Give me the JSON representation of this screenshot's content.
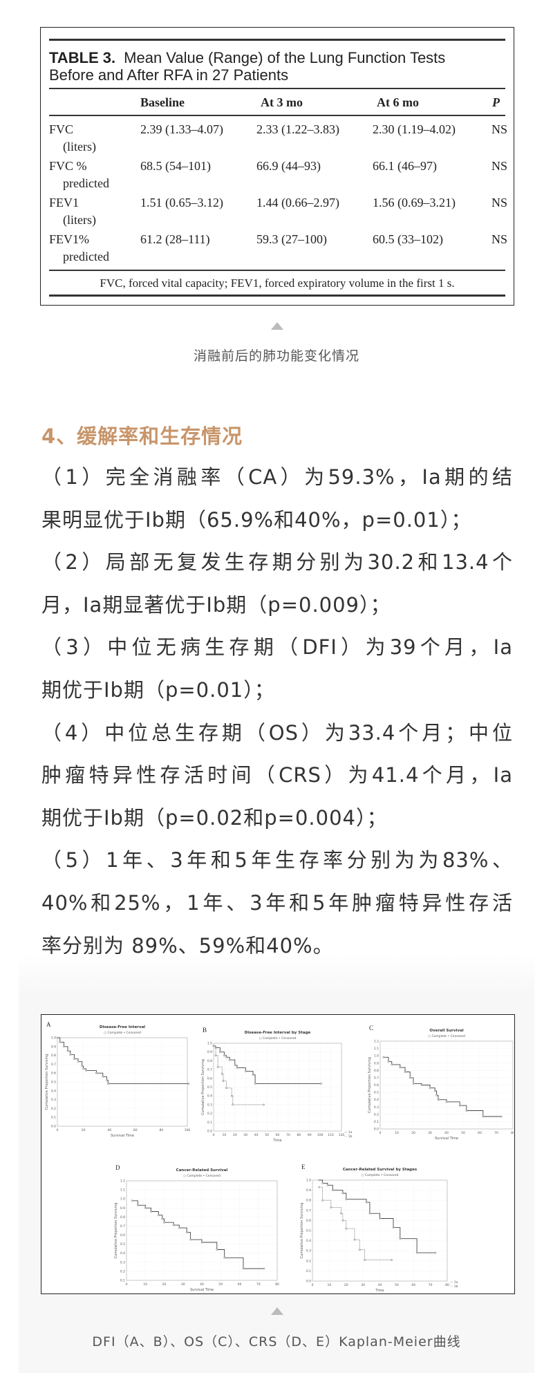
{
  "table": {
    "label": "TABLE 3.",
    "title_line1": "Mean Value (Range) of the Lung Function Tests",
    "title_line2": "Before and After RFA in 27 Patients",
    "headers": [
      "",
      "Baseline",
      "At 3 mo",
      "At 6 mo",
      "P"
    ],
    "rows": [
      {
        "name": "FVC",
        "sub": "(liters)",
        "cells": [
          "2.39 (1.33–4.07)",
          "2.33 (1.22–3.83)",
          "2.30 (1.19–4.02)",
          "NS"
        ]
      },
      {
        "name": "FVC %",
        "sub": "predicted",
        "cells": [
          "68.5 (54–101)",
          "66.9 (44–93)",
          "66.1 (46–97)",
          "NS"
        ]
      },
      {
        "name": "FEV1",
        "sub": "(liters)",
        "cells": [
          "1.51 (0.65–3.12)",
          "1.44 (0.66–2.97)",
          "1.56 (0.69–3.21)",
          "NS"
        ]
      },
      {
        "name": "FEV1%",
        "sub": "predicted",
        "cells": [
          "61.2 (28–111)",
          "59.3 (27–100)",
          "60.5 (33–102)",
          "NS"
        ]
      }
    ],
    "footnote": "FVC, forced vital capacity; FEV1, forced expiratory volume in the first 1 s."
  },
  "caption1": "消融前后的肺功能变化情况",
  "section": {
    "heading": "4、缓解率和生存情况",
    "lines": [
      "（1）完全消融率（CA）为59.3%，Ia期的结",
      "果明显优于Ib期（65.9%和40%，p=0.01）；",
      "（2）局部无复发生存期分别为30.2和13.4个",
      "月，Ia期显著优于Ib期（p=0.009）；",
      "（3）中位无病生存期（DFI）为39个月，Ia",
      "期优于Ib期（p=0.01）；",
      "（4）中位总生存期（OS）为33.4个月；中位",
      "肿瘤特异性存活时间（CRS）为41.4个月，Ia",
      "期优于Ib期（p=0.02和p=0.004）；",
      "（5）1年、3年和5年生存率分别为为83%、",
      "40%和25%，1年、3年和5年肿瘤特异性存活",
      "率分别为 89%、59%和40%。"
    ],
    "paragraph_end_lines": [
      1,
      3,
      5,
      8,
      11
    ]
  },
  "caption2": "DFI（A、B）、OS（C）、CRS（D、E）Kaplan-Meier曲线",
  "chart_data": [
    {
      "panel": "A",
      "type": "line",
      "title": "Disease-Free Interval",
      "legend": [
        "Complete",
        "Censored"
      ],
      "xlabel": "Survival Time",
      "ylabel": "Cumulative Proportion Surviving",
      "xlim": [
        0,
        100
      ],
      "xstep": 20,
      "ylim": [
        0,
        1.0
      ],
      "ystep": 0.1,
      "grid": true,
      "series": [
        {
          "x": [
            0,
            2,
            5,
            8,
            10,
            13,
            16,
            19,
            20,
            22,
            30,
            35,
            38,
            39,
            101
          ],
          "y": [
            1,
            0.95,
            0.9,
            0.85,
            0.81,
            0.76,
            0.73,
            0.68,
            0.65,
            0.63,
            0.6,
            0.56,
            0.52,
            0.48,
            0.48
          ]
        }
      ]
    },
    {
      "panel": "B",
      "type": "line",
      "title": "Disease-Free Interval by Stage",
      "legend": [
        "Complete",
        "Censored"
      ],
      "xlabel": "Time",
      "ylabel": "Cumulative Proportion Surviving",
      "xlim": [
        0,
        120
      ],
      "xstep": 10,
      "ylim": [
        0,
        1.0
      ],
      "ystep": 0.1,
      "grid": true,
      "series": [
        {
          "name": "1a",
          "x": [
            0,
            2,
            6,
            10,
            12,
            15,
            20,
            22,
            30,
            37,
            39,
            101
          ],
          "y": [
            0.97,
            0.95,
            0.9,
            0.86,
            0.84,
            0.81,
            0.75,
            0.72,
            0.68,
            0.64,
            0.54,
            0.54
          ]
        },
        {
          "name": "1b",
          "x": [
            0,
            2,
            4,
            8,
            9,
            12,
            17,
            18,
            47
          ],
          "y": [
            0.97,
            0.86,
            0.73,
            0.65,
            0.57,
            0.49,
            0.4,
            0.3,
            0.3
          ]
        }
      ]
    },
    {
      "panel": "C",
      "type": "line",
      "title": "Overall Survival",
      "legend": [
        "Complete",
        "Censored"
      ],
      "xlabel": "Survival Time",
      "ylabel": "Cumulative Proportion Surviving",
      "xlim": [
        0,
        80
      ],
      "xstep": 10,
      "ylim": [
        0,
        1.2
      ],
      "ystep": 0.1,
      "grid": true,
      "series": [
        {
          "x": [
            2,
            5,
            7,
            12,
            15,
            18,
            20,
            25,
            30,
            33,
            34,
            35,
            40,
            48,
            52,
            62,
            73
          ],
          "y": [
            0.98,
            0.92,
            0.88,
            0.84,
            0.78,
            0.7,
            0.62,
            0.6,
            0.56,
            0.52,
            0.46,
            0.4,
            0.37,
            0.32,
            0.25,
            0.17,
            0.17
          ]
        }
      ]
    },
    {
      "panel": "D",
      "type": "line",
      "title": "Cancer-Related Survival",
      "legend": [
        "Complete",
        "Censored"
      ],
      "xlabel": "Survival Time",
      "ylabel": "Cumulative Proportion Surviving",
      "xlim": [
        0,
        80
      ],
      "xstep": 10,
      "ylim": [
        0.1,
        1.2
      ],
      "ystep": 0.1,
      "grid": true,
      "series": [
        {
          "x": [
            3,
            6,
            10,
            13,
            17,
            19,
            20,
            25,
            28,
            32,
            34,
            40,
            48,
            52,
            62,
            73
          ],
          "y": [
            0.98,
            0.93,
            0.9,
            0.86,
            0.82,
            0.78,
            0.74,
            0.71,
            0.68,
            0.63,
            0.55,
            0.52,
            0.44,
            0.35,
            0.23,
            0.23
          ]
        }
      ]
    },
    {
      "panel": "E",
      "type": "line",
      "title": "Cancer-Related Survival by Stages",
      "legend": [
        "Complete",
        "Censored"
      ],
      "xlabel": "Time",
      "ylabel": "Cumulative Proportion Surviving",
      "xlim": [
        0,
        80
      ],
      "xstep": 10,
      "ylim": [
        0,
        1.0
      ],
      "ystep": 0.1,
      "grid": true,
      "series": [
        {
          "name": "1a",
          "x": [
            4,
            6,
            9,
            12,
            18,
            20,
            32,
            34,
            40,
            48,
            52,
            62,
            73
          ],
          "y": [
            1.0,
            0.97,
            0.95,
            0.9,
            0.87,
            0.81,
            0.78,
            0.67,
            0.62,
            0.53,
            0.42,
            0.28,
            0.28
          ]
        },
        {
          "name": "1b",
          "x": [
            4,
            6,
            11,
            17,
            18,
            20,
            25,
            28,
            31,
            47
          ],
          "y": [
            0.93,
            0.8,
            0.73,
            0.67,
            0.6,
            0.52,
            0.41,
            0.31,
            0.21,
            0.21
          ]
        }
      ]
    }
  ],
  "colors": {
    "heading": "#c8956a",
    "caret": "#bbbbbb",
    "figure_background": "#f7f7f7"
  }
}
